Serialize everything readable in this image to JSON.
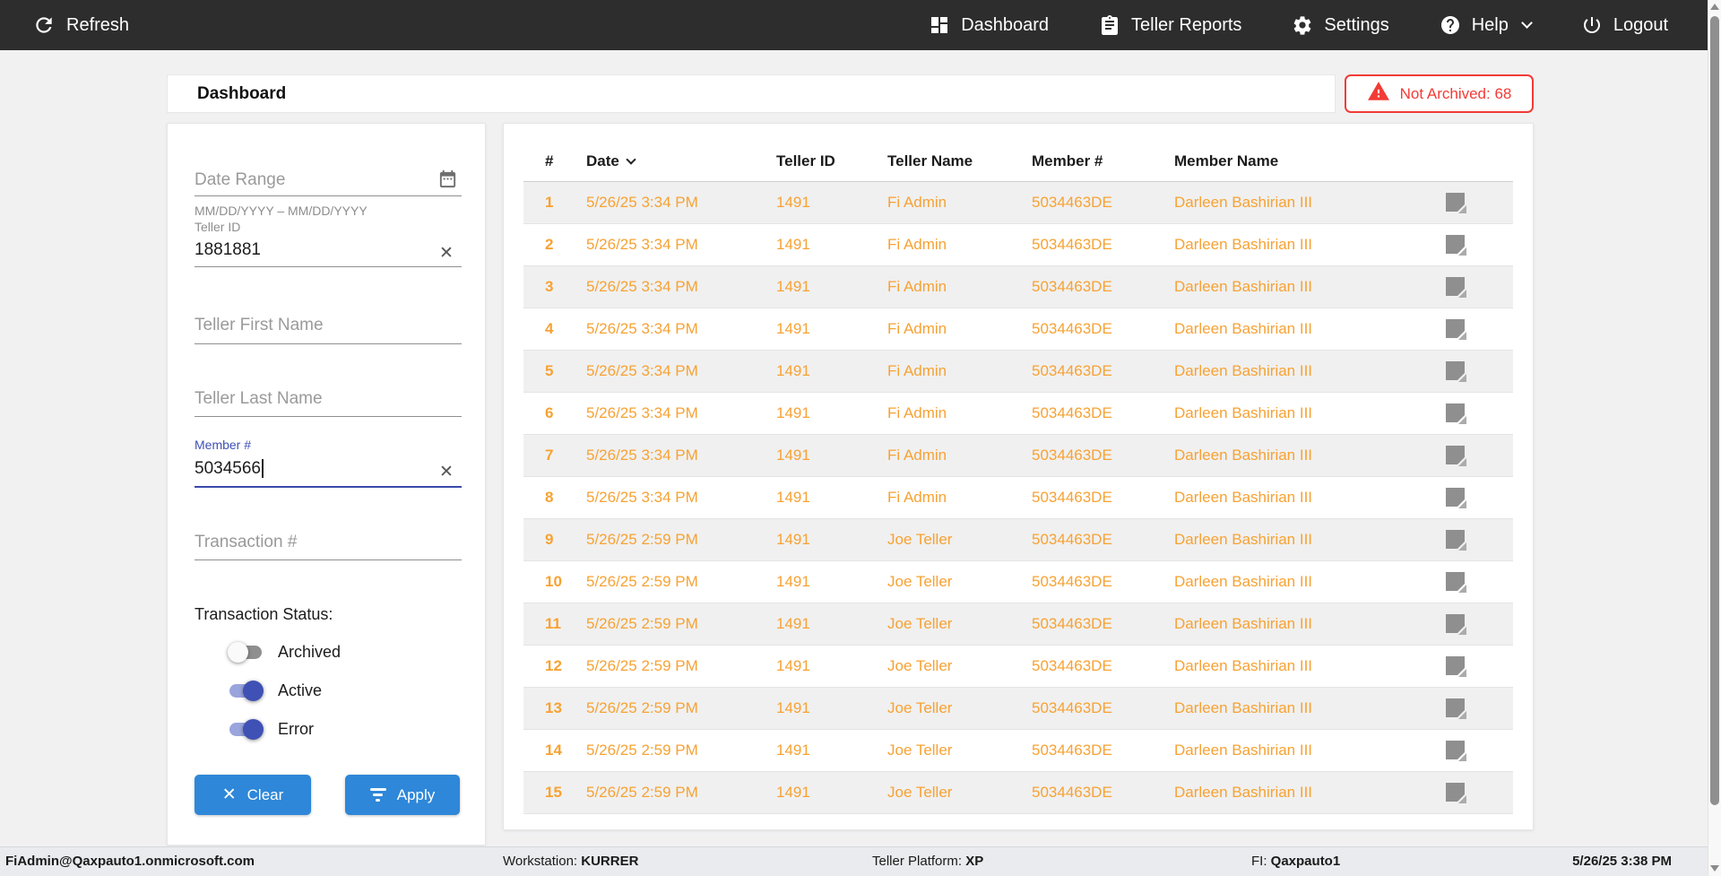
{
  "topnav": {
    "refresh_label": "Refresh",
    "items": [
      {
        "label": "Dashboard"
      },
      {
        "label": "Teller Reports"
      },
      {
        "label": "Settings"
      },
      {
        "label": "Help"
      },
      {
        "label": "Logout"
      }
    ]
  },
  "header": {
    "title": "Dashboard",
    "not_archived_badge": "Not Archived: 68"
  },
  "filters": {
    "date_range": {
      "placeholder": "Date Range",
      "hint": "MM/DD/YYYY – MM/DD/YYYY"
    },
    "teller_id": {
      "label": "Teller ID",
      "value": "1881881"
    },
    "teller_first_name": {
      "placeholder": "Teller First Name"
    },
    "teller_last_name": {
      "placeholder": "Teller Last Name"
    },
    "member_number": {
      "label": "Member #",
      "value": "5034566"
    },
    "transaction_number": {
      "placeholder": "Transaction #"
    },
    "status": {
      "label": "Transaction Status:",
      "toggles": [
        {
          "label": "Archived",
          "on": false
        },
        {
          "label": "Active",
          "on": true
        },
        {
          "label": "Error",
          "on": true
        }
      ]
    },
    "clear_label": "Clear",
    "apply_label": "Apply"
  },
  "table": {
    "columns": [
      "#",
      "Date",
      "Teller ID",
      "Teller Name",
      "Member #",
      "Member Name"
    ],
    "sorted_column": "Date",
    "rows": [
      [
        "1",
        "5/26/25 3:34 PM",
        "1491",
        "Fi Admin",
        "5034463DE",
        "Darleen Bashirian III"
      ],
      [
        "2",
        "5/26/25 3:34 PM",
        "1491",
        "Fi Admin",
        "5034463DE",
        "Darleen Bashirian III"
      ],
      [
        "3",
        "5/26/25 3:34 PM",
        "1491",
        "Fi Admin",
        "5034463DE",
        "Darleen Bashirian III"
      ],
      [
        "4",
        "5/26/25 3:34 PM",
        "1491",
        "Fi Admin",
        "5034463DE",
        "Darleen Bashirian III"
      ],
      [
        "5",
        "5/26/25 3:34 PM",
        "1491",
        "Fi Admin",
        "5034463DE",
        "Darleen Bashirian III"
      ],
      [
        "6",
        "5/26/25 3:34 PM",
        "1491",
        "Fi Admin",
        "5034463DE",
        "Darleen Bashirian III"
      ],
      [
        "7",
        "5/26/25 3:34 PM",
        "1491",
        "Fi Admin",
        "5034463DE",
        "Darleen Bashirian III"
      ],
      [
        "8",
        "5/26/25 3:34 PM",
        "1491",
        "Fi Admin",
        "5034463DE",
        "Darleen Bashirian III"
      ],
      [
        "9",
        "5/26/25 2:59 PM",
        "1491",
        "Joe Teller",
        "5034463DE",
        "Darleen Bashirian III"
      ],
      [
        "10",
        "5/26/25 2:59 PM",
        "1491",
        "Joe Teller",
        "5034463DE",
        "Darleen Bashirian III"
      ],
      [
        "11",
        "5/26/25 2:59 PM",
        "1491",
        "Joe Teller",
        "5034463DE",
        "Darleen Bashirian III"
      ],
      [
        "12",
        "5/26/25 2:59 PM",
        "1491",
        "Joe Teller",
        "5034463DE",
        "Darleen Bashirian III"
      ],
      [
        "13",
        "5/26/25 2:59 PM",
        "1491",
        "Joe Teller",
        "5034463DE",
        "Darleen Bashirian III"
      ],
      [
        "14",
        "5/26/25 2:59 PM",
        "1491",
        "Joe Teller",
        "5034463DE",
        "Darleen Bashirian III"
      ],
      [
        "15",
        "5/26/25 2:59 PM",
        "1491",
        "Joe Teller",
        "5034463DE",
        "Darleen Bashirian III"
      ]
    ]
  },
  "statusbar": {
    "user": "FiAdmin@Qaxpauto1.onmicrosoft.com",
    "workstation_label": "Workstation: ",
    "workstation_value": "KURRER",
    "platform_label": "Teller Platform: ",
    "platform_value": "XP",
    "fi_label": "FI: ",
    "fi_value": "Qaxpauto1",
    "datetime": "5/26/25 3:38 PM"
  },
  "icons": [
    "refresh-icon",
    "dashboard-grid-icon",
    "clipboard-icon",
    "gear-icon",
    "help-icon",
    "chevron-down-icon",
    "power-icon",
    "calendar-icon",
    "clear-x-icon",
    "warning-icon",
    "sort-chevron-icon",
    "filter-icon",
    "note-icon",
    "scroll-up-icon",
    "scroll-down-icon"
  ],
  "colors": {
    "accent_orange": "#F7A233",
    "accent_blue": "#2E87D8",
    "accent_indigo": "#3F51B5",
    "alert_red": "#F23B36",
    "topnav_bg": "#2D2D2D",
    "row_alt_bg": "#F0F0F0",
    "statusbar_bg": "#E9EBEE"
  }
}
